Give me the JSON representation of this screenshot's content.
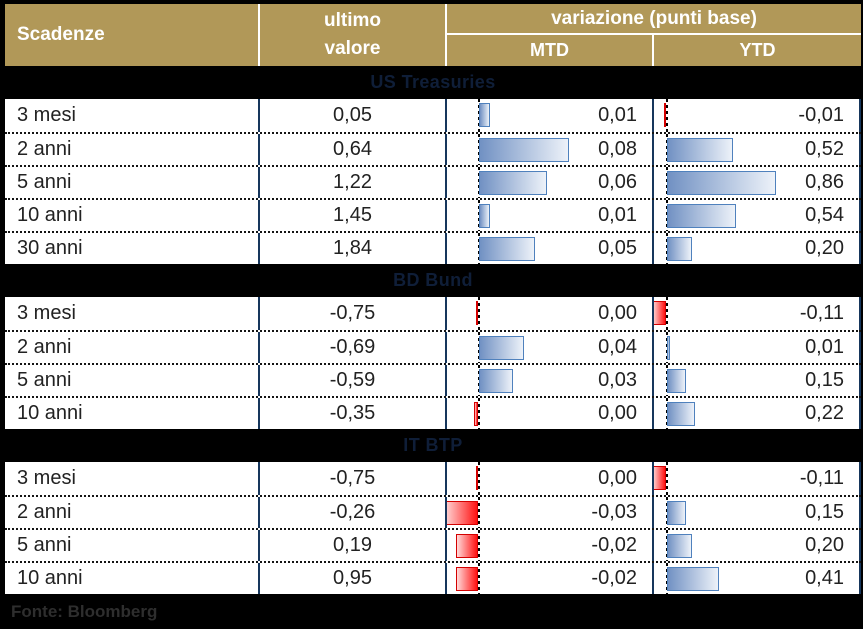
{
  "header": {
    "scadenze": "Scadenze",
    "ultimo_line1": "ultimo",
    "ultimo_line2": "valore",
    "variazione": "variazione (punti base)",
    "mtd": "MTD",
    "ytd": "YTD"
  },
  "footer": {
    "source": "Fonte: Bloomberg"
  },
  "colors": {
    "header_gold": "#B19858",
    "border_navy": "#16365C",
    "bar_positive_border": "#4F81BD",
    "bar_positive_fill": "#7191C3",
    "bar_negative_border": "#D40000",
    "bar_negative_fill": "#FF1212",
    "section_band_bg": "#000000",
    "section_band_text": "#0F1E38"
  },
  "chart_data": {
    "type": "table",
    "title": "Scadenze - ultimo valore e variazione (punti base) MTD / YTD",
    "columns": [
      "Scadenze",
      "ultimo valore",
      "variazione (punti base) MTD",
      "variazione (punti base) YTD"
    ],
    "legend": {
      "positive_bar": "blue",
      "negative_bar": "red"
    },
    "sections": [
      {
        "title": "US Treasuries",
        "rows": [
          {
            "maturity": "3 mesi",
            "last": "0,05",
            "mtd_text": "0,01",
            "mtd": 0.01,
            "ytd_text": "-0,01",
            "ytd": -0.01
          },
          {
            "maturity": "2 anni",
            "last": "0,64",
            "mtd_text": "0,08",
            "mtd": 0.08,
            "ytd_text": "0,52",
            "ytd": 0.52
          },
          {
            "maturity": "5 anni",
            "last": "1,22",
            "mtd_text": "0,06",
            "mtd": 0.06,
            "ytd_text": "0,86",
            "ytd": 0.86
          },
          {
            "maturity": "10 anni",
            "last": "1,45",
            "mtd_text": "0,01",
            "mtd": 0.01,
            "ytd_text": "0,54",
            "ytd": 0.54
          },
          {
            "maturity": "30 anni",
            "last": "1,84",
            "mtd_text": "0,05",
            "mtd": 0.05,
            "ytd_text": "0,20",
            "ytd": 0.2
          }
        ]
      },
      {
        "title": "BD Bund",
        "rows": [
          {
            "maturity": "3 mesi",
            "last": "-0,75",
            "mtd_text": "0,00",
            "mtd": -0.001,
            "ytd_text": "-0,11",
            "ytd": -0.11
          },
          {
            "maturity": "2 anni",
            "last": "-0,69",
            "mtd_text": "0,04",
            "mtd": 0.04,
            "ytd_text": "0,01",
            "ytd": 0.01
          },
          {
            "maturity": "5 anni",
            "last": "-0,59",
            "mtd_text": "0,03",
            "mtd": 0.03,
            "ytd_text": "0,15",
            "ytd": 0.15
          },
          {
            "maturity": "10 anni",
            "last": "-0,35",
            "mtd_text": "0,00",
            "mtd": -0.004,
            "ytd_text": "0,22",
            "ytd": 0.22
          }
        ]
      },
      {
        "title": "IT BTP",
        "rows": [
          {
            "maturity": "3 mesi",
            "last": "-0,75",
            "mtd_text": "0,00",
            "mtd": -0.001,
            "ytd_text": "-0,11",
            "ytd": -0.11
          },
          {
            "maturity": "2 anni",
            "last": "-0,26",
            "mtd_text": "-0,03",
            "mtd": -0.03,
            "ytd_text": "0,15",
            "ytd": 0.15
          },
          {
            "maturity": "5 anni",
            "last": "0,19",
            "mtd_text": "-0,02",
            "mtd": -0.02,
            "ytd_text": "0,20",
            "ytd": 0.2
          },
          {
            "maturity": "10 anni",
            "last": "0,95",
            "mtd_text": "-0,02",
            "mtd": -0.02,
            "ytd_text": "0,41",
            "ytd": 0.41
          }
        ]
      }
    ]
  }
}
